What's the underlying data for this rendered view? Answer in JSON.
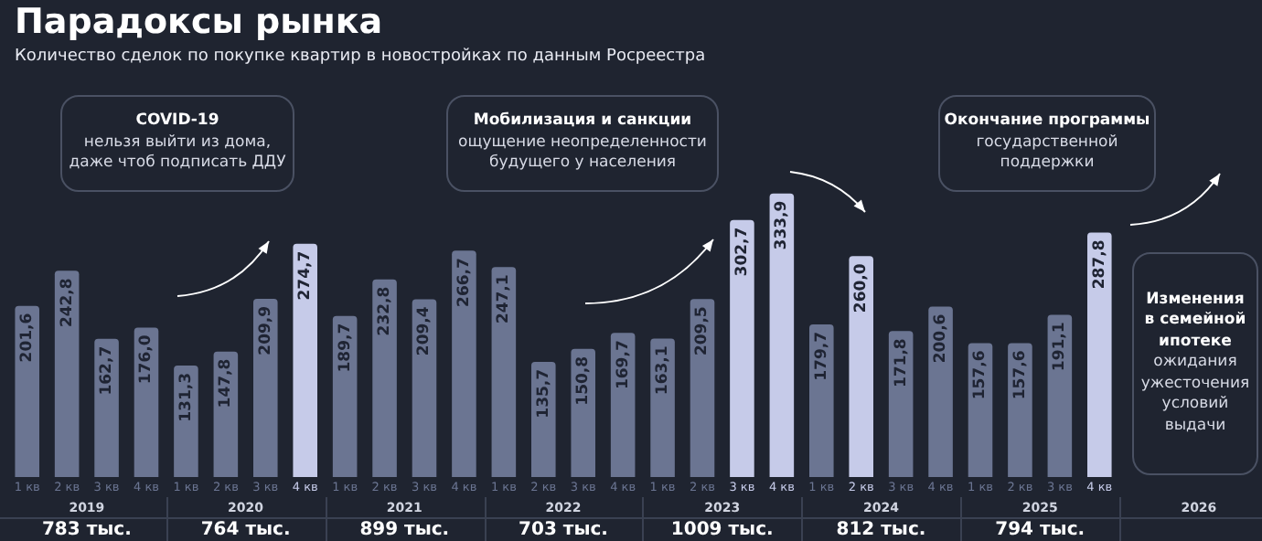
{
  "chart_data": {
    "type": "bar",
    "title": "Парадоксы рынка",
    "subtitle": "Количество сделок по покупке квартир в новостройках по данным Росреестра",
    "categories": [
      "1 кв",
      "2 кв",
      "3 кв",
      "4 кв",
      "1 кв",
      "2 кв",
      "3 кв",
      "4 кв",
      "1 кв",
      "2 кв",
      "3 кв",
      "4 кв",
      "1 кв",
      "2 кв",
      "3 кв",
      "4 кв",
      "1 кв",
      "2 кв",
      "3 кв",
      "4 кв",
      "1 кв",
      "2 кв",
      "3 кв",
      "4 кв",
      "1 кв",
      "2 кв",
      "3 кв",
      "4 кв"
    ],
    "values": [
      201.6,
      242.8,
      162.7,
      176.0,
      131.3,
      147.8,
      209.9,
      274.7,
      189.7,
      232.8,
      209.4,
      266.7,
      247.1,
      135.7,
      150.8,
      169.7,
      163.1,
      209.5,
      302.7,
      333.9,
      179.7,
      260.0,
      171.8,
      200.6,
      157.6,
      157.6,
      191.1,
      287.8
    ],
    "value_labels": [
      "201,6",
      "242,8",
      "162,7",
      "176,0",
      "131,3",
      "147,8",
      "209,9",
      "274,7",
      "189,7",
      "232,8",
      "209,4",
      "266,7",
      "247,1",
      "135,7",
      "150,8",
      "169,7",
      "163,1",
      "209,5",
      "302,7",
      "333,9",
      "179,7",
      "260,0",
      "171,8",
      "200,6",
      "157,6",
      "157,6",
      "191,1",
      "287,8"
    ],
    "colors": [
      "#6b7592",
      "#6b7592",
      "#6b7592",
      "#6b7592",
      "#6b7592",
      "#6b7592",
      "#6b7592",
      "#c6cbe9",
      "#6b7592",
      "#6b7592",
      "#6b7592",
      "#6b7592",
      "#6b7592",
      "#6b7592",
      "#6b7592",
      "#6b7592",
      "#6b7592",
      "#6b7592",
      "#c6cbe9",
      "#c6cbe9",
      "#6b7592",
      "#c6cbe9",
      "#6b7592",
      "#6b7592",
      "#6b7592",
      "#6b7592",
      "#6b7592",
      "#c6cbe9"
    ],
    "ylim": [
      0,
      340
    ],
    "tick_labels": "x",
    "grid": false,
    "legend": false,
    "annotations": [
      "COVID-19\nнельзя выйти из дома,\nдаже чтоб подписать ДДУ",
      "Мобилизация и санкции\nощущение неопределенности\nбудущего у населения",
      "Окончание программы\nгосударственной\nподдержки",
      "Изменения\nв семейной\nипотеке\nожидания\nужесточения\nусловий\nвыдачи",
      "2019",
      "2020",
      "2021",
      "2022",
      "2023",
      "2024",
      "2025",
      "2026",
      "783 тыс.",
      "764 тыс.",
      "899 тыс.",
      "703 тыс.",
      "1009 тыс.",
      "812 тыс.",
      "794 тыс."
    ]
  }
}
